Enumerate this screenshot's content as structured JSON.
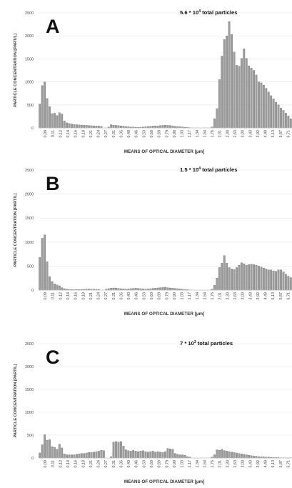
{
  "chart_data": [
    {
      "type": "bar",
      "panel_label": "A",
      "total": {
        "base": "5.6 * 10",
        "exp": "4",
        "suffix": " total particles"
      },
      "ylabel": "PARTICLE CONCENTRATION [PART/L]",
      "xlabel": "MEANS OF OPTICAL DIAMETER [µm]",
      "ylim": [
        0,
        2500
      ],
      "yticks": [
        0,
        500,
        1000,
        1500,
        2000,
        2500
      ],
      "x_tick_labels": [
        "0,09",
        "0,11",
        "0,12",
        "0,14",
        "0,16",
        "0,18",
        "0,21",
        "0,24",
        "0,27",
        "0,31",
        "0,35",
        "0,40",
        "0,46",
        "0,53",
        "0,60",
        "0,69",
        "0,79",
        "0,90",
        "1,03",
        "1,17",
        "1,34",
        "1,54",
        "1,76",
        "2,01",
        "2,30",
        "2,63",
        "3,00",
        "3,43",
        "3,92",
        "4,49",
        "5,13",
        "5,87",
        "6,71"
      ],
      "grid": true,
      "values": [
        520,
        920,
        1000,
        640,
        460,
        310,
        320,
        270,
        330,
        300,
        150,
        110,
        95,
        85,
        75,
        70,
        65,
        62,
        58,
        55,
        50,
        48,
        45,
        42,
        40,
        35,
        0,
        0,
        20,
        70,
        60,
        55,
        50,
        45,
        40,
        30,
        25,
        20,
        20,
        15,
        12,
        15,
        20,
        25,
        30,
        35,
        40,
        45,
        40,
        50,
        55,
        60,
        55,
        50,
        45,
        35,
        30,
        25,
        20,
        15,
        10,
        5,
        0,
        0,
        0,
        0,
        0,
        0,
        0,
        0,
        20,
        200,
        420,
        1050,
        1560,
        1920,
        2000,
        2310,
        2030,
        1650,
        1360,
        1340,
        1510,
        1720,
        1510,
        1350,
        1300,
        1250,
        1150,
        1000,
        980,
        930,
        860,
        780,
        700,
        630,
        560,
        500,
        430,
        380,
        320,
        260,
        200
      ],
      "bar_color": "#9e9e9e"
    },
    {
      "type": "bar",
      "panel_label": "B",
      "total": {
        "base": "1.5 * 10",
        "exp": "4",
        "suffix": " total particles"
      },
      "ylabel": "PARTICLE CONCENTRATION [PART/L]",
      "xlabel": "MEANS OF OPTICAL DIAMETER [µm]",
      "ylim": [
        0,
        2500
      ],
      "yticks": [
        0,
        500,
        1000,
        1500,
        2000,
        2500
      ],
      "x_tick_labels": [
        "0,09",
        "0,11",
        "0,12",
        "0,14",
        "0,16",
        "0,18",
        "0,21",
        "0,24",
        "0,27",
        "0,31",
        "0,35",
        "0,40",
        "0,46",
        "0,53",
        "0,60",
        "0,69",
        "0,79",
        "0,90",
        "1,03",
        "1,17",
        "1,34",
        "1,54",
        "1,76",
        "2,01",
        "2,30",
        "2,63",
        "3,00",
        "3,43",
        "3,92",
        "4,49",
        "5,13",
        "5,87",
        "6,71"
      ],
      "grid": true,
      "values": [
        680,
        1080,
        1150,
        590,
        280,
        180,
        130,
        110,
        90,
        50,
        30,
        20,
        15,
        12,
        10,
        10,
        12,
        15,
        18,
        20,
        22,
        20,
        18,
        15,
        12,
        0,
        0,
        20,
        30,
        40,
        45,
        40,
        35,
        30,
        25,
        20,
        25,
        30,
        35,
        40,
        35,
        30,
        25,
        20,
        25,
        30,
        35,
        40,
        45,
        50,
        55,
        60,
        50,
        45,
        40,
        35,
        30,
        25,
        20,
        15,
        10,
        5,
        0,
        0,
        0,
        0,
        0,
        0,
        0,
        0,
        20,
        100,
        250,
        470,
        560,
        720,
        560,
        470,
        440,
        430,
        470,
        520,
        570,
        550,
        520,
        530,
        540,
        530,
        520,
        500,
        480,
        460,
        440,
        420,
        420,
        400,
        390,
        420,
        420,
        380,
        330,
        290,
        260
      ],
      "bar_color": "#9e9e9e"
    },
    {
      "type": "bar",
      "panel_label": "C",
      "total": {
        "base": "7 * 10",
        "exp": "3",
        "suffix": " total particles"
      },
      "ylabel": "PARTICLE CONCENTRATION [PART/L]",
      "xlabel": "MEANS OF OPTICAL DIAMETER [µm]",
      "ylim": [
        0,
        2500
      ],
      "yticks": [
        0,
        500,
        1000,
        1500,
        2000,
        2500
      ],
      "x_tick_labels": [
        "0,09",
        "0,11",
        "0,12",
        "0,14",
        "0,16",
        "0,18",
        "0,21",
        "0,24",
        "0,27",
        "0,31",
        "0,35",
        "0,40",
        "0,46",
        "0,53",
        "0,60",
        "0,69",
        "0,79",
        "0,90",
        "1,03",
        "1,17",
        "1,34",
        "1,54",
        "1,76",
        "2,01",
        "2,30",
        "2,63",
        "3,00",
        "3,43",
        "3,92",
        "4,49",
        "5,13",
        "5,87",
        "6,71"
      ],
      "grid": true,
      "values": [
        110,
        290,
        510,
        390,
        400,
        250,
        230,
        190,
        300,
        220,
        90,
        70,
        70,
        70,
        70,
        80,
        90,
        100,
        100,
        110,
        120,
        120,
        130,
        140,
        150,
        170,
        160,
        0,
        0,
        30,
        350,
        360,
        350,
        360,
        260,
        180,
        160,
        150,
        170,
        150,
        140,
        150,
        160,
        140,
        130,
        140,
        150,
        130,
        140,
        130,
        120,
        140,
        210,
        200,
        190,
        100,
        80,
        70,
        70,
        60,
        30,
        20,
        0,
        0,
        0,
        0,
        0,
        0,
        0,
        0,
        20,
        70,
        180,
        170,
        190,
        160,
        150,
        140,
        130,
        120,
        110,
        100,
        90,
        80,
        70,
        60,
        50,
        40,
        40,
        30,
        30,
        25,
        20,
        20,
        15,
        15,
        10,
        10,
        5,
        5,
        5,
        5,
        5
      ],
      "bar_color": "#9e9e9e"
    }
  ]
}
